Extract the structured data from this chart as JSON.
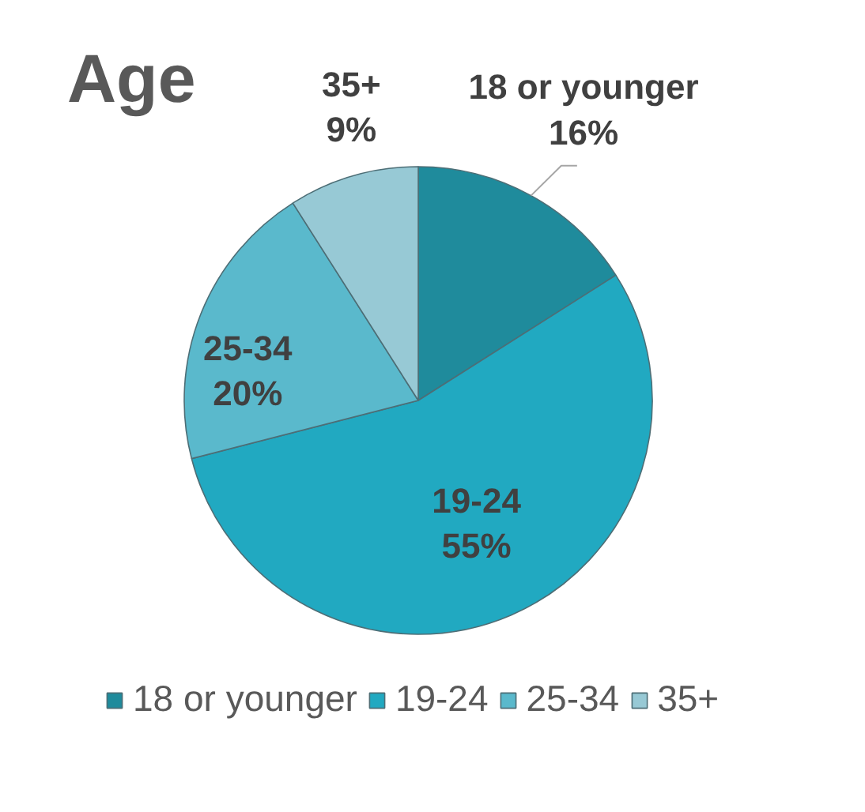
{
  "chart_data": {
    "type": "pie",
    "title": "Age",
    "categories": [
      "18 or younger",
      "19-24",
      "25-34",
      "35+"
    ],
    "values": [
      16,
      55,
      20,
      9
    ],
    "value_labels": [
      "16%",
      "55%",
      "20%",
      "9%"
    ],
    "colors": [
      "#1f8b9c",
      "#21a9c1",
      "#5ab9cc",
      "#97c9d5"
    ],
    "legend": "bottom"
  }
}
